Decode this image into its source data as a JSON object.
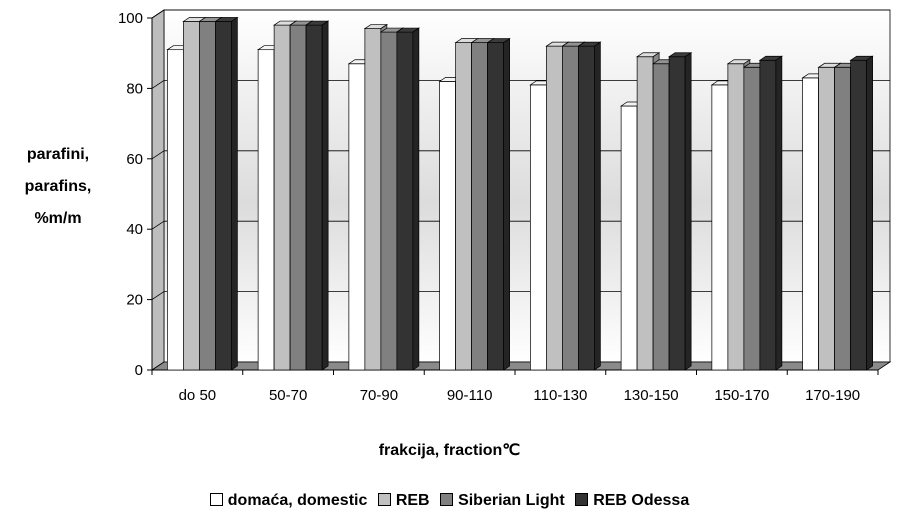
{
  "chart_data": {
    "type": "bar",
    "ylabel": [
      "parafini,",
      "parafins,",
      "%m/m"
    ],
    "xlabel": "frakcija, fraction℃",
    "ylim": [
      0,
      100
    ],
    "yticks": [
      0,
      20,
      40,
      60,
      80,
      100
    ],
    "grid": true,
    "legend_position": "bottom",
    "categories": [
      "do 50",
      "50-70",
      "70-90",
      "90-110",
      "110-130",
      "130-150",
      "150-170",
      "170-190"
    ],
    "series": [
      {
        "name": "domaća, domestic",
        "color": "#ffffff",
        "values": [
          91,
          91,
          87,
          82,
          81,
          75,
          81,
          83
        ]
      },
      {
        "name": "REB",
        "color": "#c0c0c0",
        "values": [
          99,
          98,
          97,
          93,
          92,
          89,
          87,
          86
        ]
      },
      {
        "name": "Siberian Light",
        "color": "#808080",
        "values": [
          99,
          98,
          96,
          93,
          92,
          87,
          86,
          86
        ]
      },
      {
        "name": "REB Odessa",
        "color": "#333333",
        "values": [
          99,
          98,
          96,
          93,
          92,
          89,
          88,
          88
        ]
      }
    ]
  }
}
